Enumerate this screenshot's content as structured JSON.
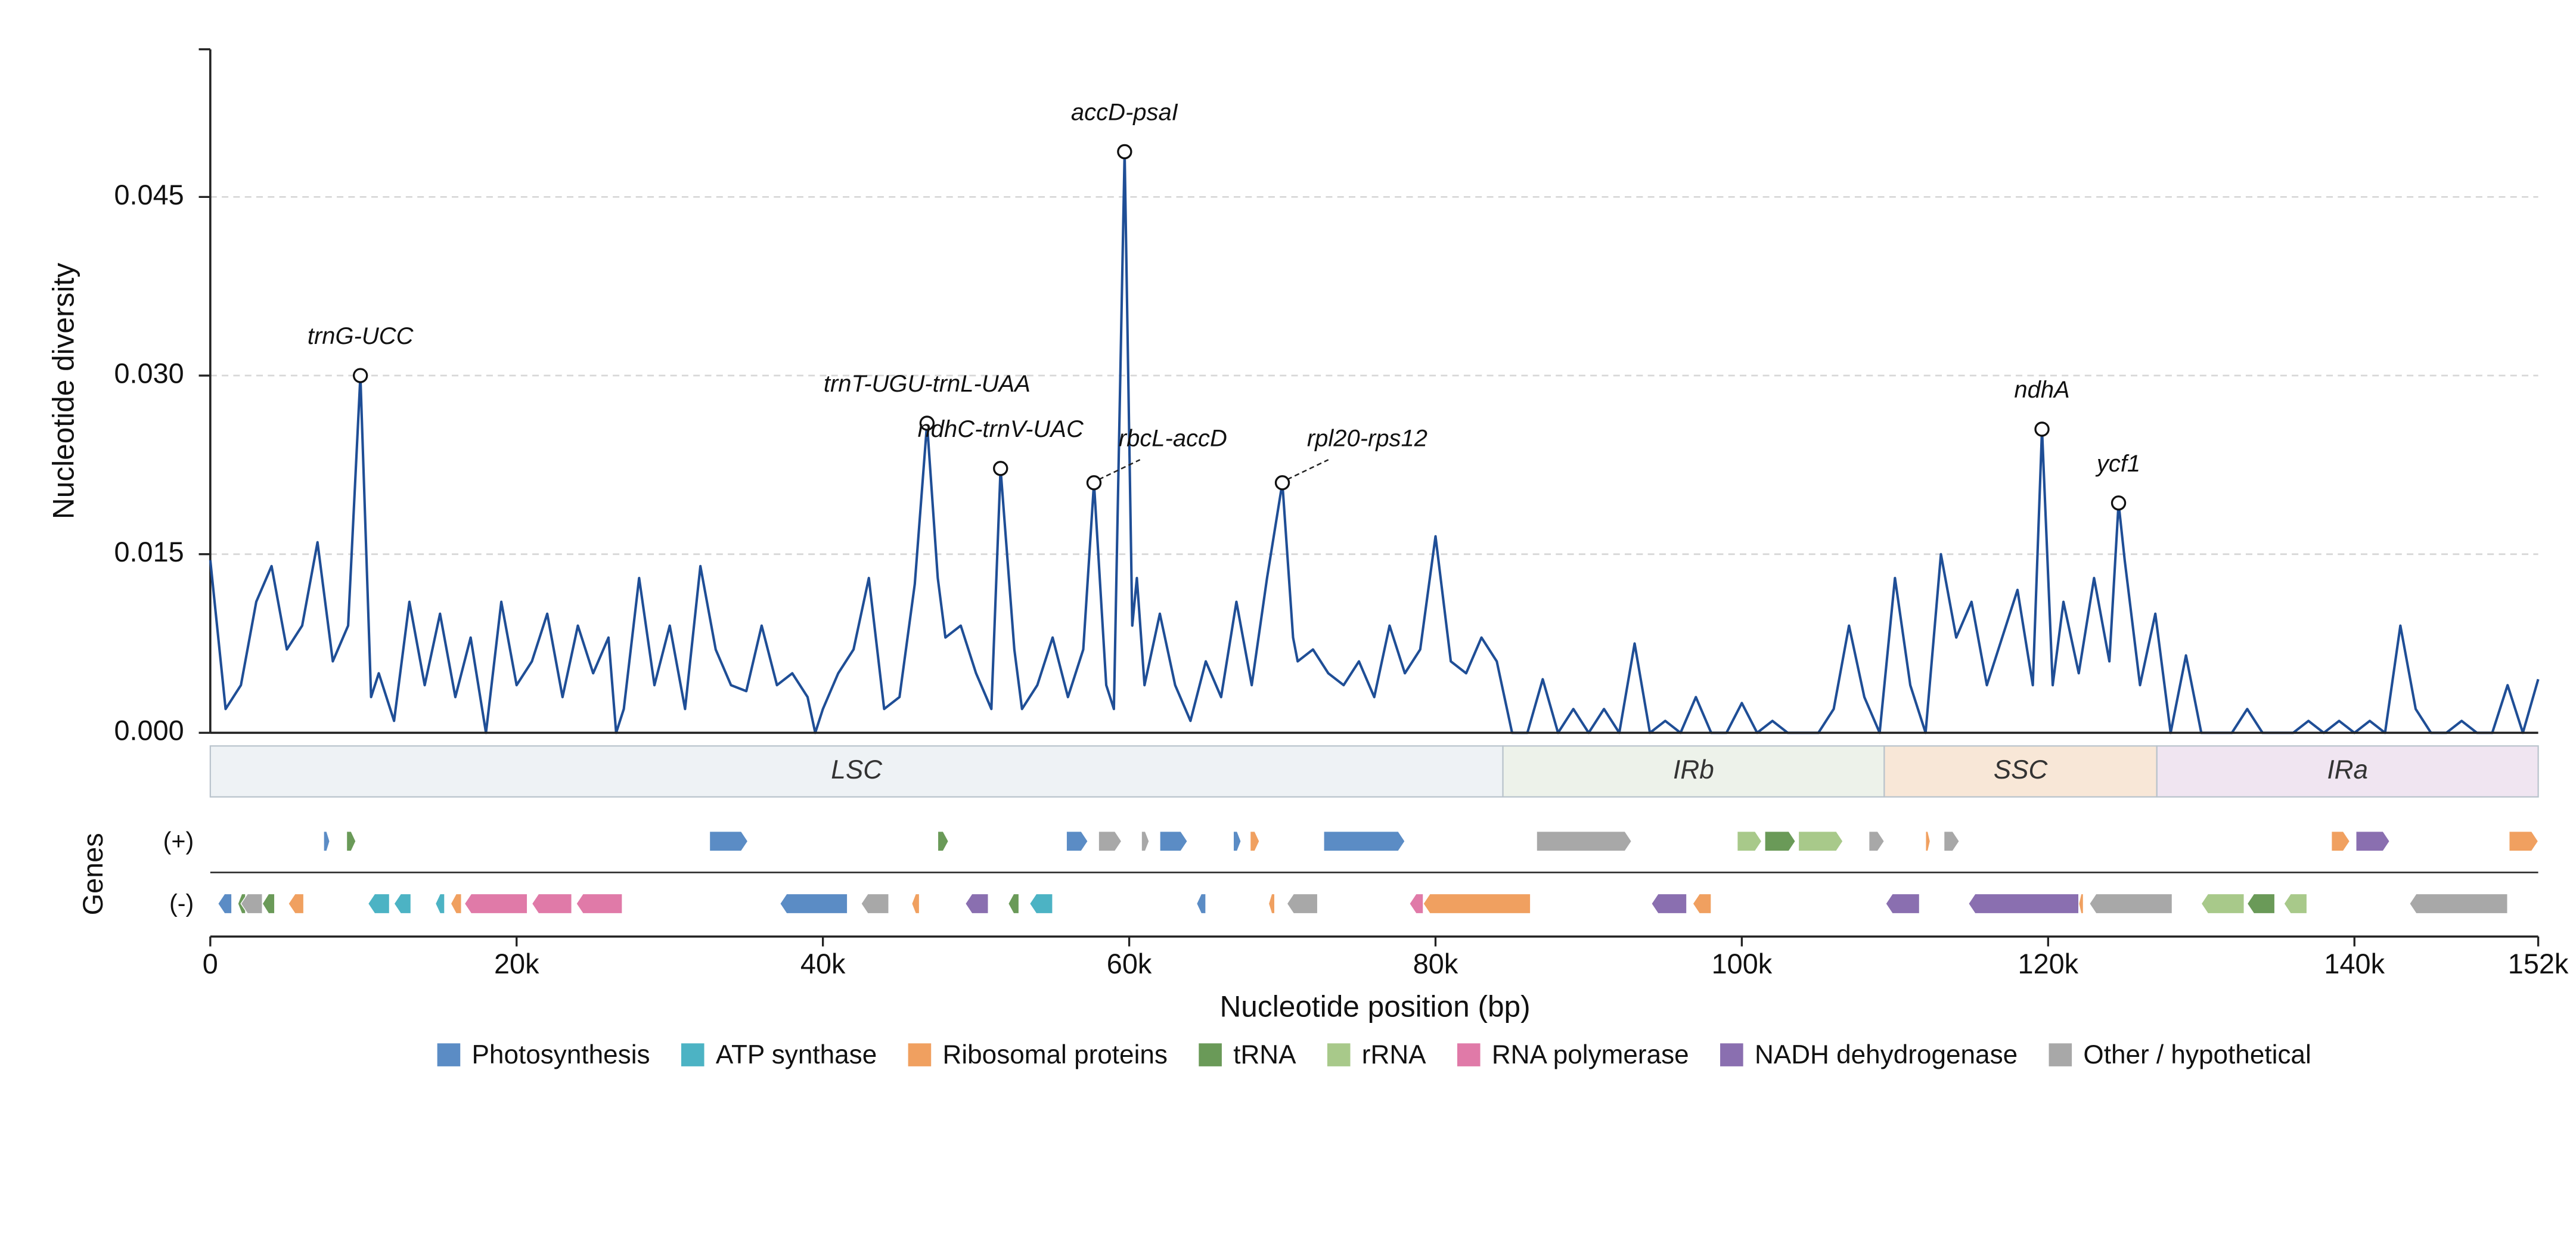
{
  "chart_data": {
    "type": "line",
    "ylabel": "Nucleotide diversity",
    "xlabel": "Nucleotide position (bp)",
    "color": "#1f4e96",
    "xlim": [
      0,
      152000
    ],
    "xticks": [
      {
        "value": 0,
        "label": "0"
      },
      {
        "value": 20000,
        "label": "20k"
      },
      {
        "value": 40000,
        "label": "40k"
      },
      {
        "value": 60000,
        "label": "60k"
      },
      {
        "value": 80000,
        "label": "80k"
      },
      {
        "value": 100000,
        "label": "100k"
      },
      {
        "value": 120000,
        "label": "120k"
      },
      {
        "value": 140000,
        "label": "140k"
      },
      {
        "value": 152000,
        "label": "152k"
      }
    ],
    "ylim": [
      0,
      0.0574
    ],
    "yticks": [
      {
        "value": 0,
        "label": "0.000"
      },
      {
        "value": 0.015,
        "label": "0.015"
      },
      {
        "value": 0.03,
        "label": "0.030"
      },
      {
        "value": 0.045,
        "label": "0.045"
      }
    ],
    "grid": true,
    "x": [
      0,
      1000,
      2000,
      3000,
      4000,
      5000,
      6000,
      7000,
      8000,
      9000,
      9800,
      10500,
      11000,
      12000,
      13000,
      14000,
      15000,
      16000,
      17000,
      18000,
      19000,
      20000,
      21000,
      22000,
      23000,
      24000,
      25000,
      26000,
      26500,
      27000,
      28000,
      29000,
      30000,
      31000,
      32000,
      33000,
      34000,
      35000,
      36000,
      37000,
      38000,
      39000,
      39500,
      40000,
      41000,
      42000,
      43000,
      44000,
      45000,
      46000,
      46800,
      47500,
      48000,
      49000,
      50000,
      51000,
      51600,
      52500,
      53000,
      54000,
      55000,
      56000,
      57000,
      57700,
      58500,
      59000,
      59700,
      60200,
      60500,
      61000,
      62000,
      63000,
      64000,
      65000,
      66000,
      67000,
      68000,
      69000,
      70000,
      70700,
      71000,
      72000,
      73000,
      74000,
      75000,
      76000,
      77000,
      78000,
      79000,
      80000,
      81000,
      82000,
      83000,
      84000,
      85000,
      86000,
      87000,
      88000,
      89000,
      90000,
      91000,
      92000,
      93000,
      94000,
      95000,
      96000,
      97000,
      98000,
      99000,
      100000,
      101000,
      102000,
      103000,
      104000,
      105000,
      106000,
      107000,
      108000,
      109000,
      110000,
      111000,
      112000,
      113000,
      114000,
      115000,
      116000,
      117000,
      118000,
      119000,
      119600,
      120300,
      121000,
      122000,
      123000,
      124000,
      124600,
      125000,
      126000,
      127000,
      128000,
      129000,
      130000,
      131000,
      132000,
      133000,
      134000,
      135000,
      136000,
      137000,
      138000,
      139000,
      140000,
      141000,
      142000,
      143000,
      144000,
      145000,
      146000,
      147000,
      148000,
      149000,
      150000,
      151000,
      152000
    ],
    "values": [
      0.0145,
      0.002,
      0.004,
      0.011,
      0.014,
      0.007,
      0.009,
      0.016,
      0.006,
      0.009,
      0.03,
      0.003,
      0.005,
      0.001,
      0.011,
      0.004,
      0.01,
      0.003,
      0.008,
      0.0,
      0.011,
      0.004,
      0.006,
      0.01,
      0.003,
      0.009,
      0.005,
      0.008,
      0.0,
      0.002,
      0.013,
      0.004,
      0.009,
      0.002,
      0.014,
      0.007,
      0.004,
      0.0035,
      0.009,
      0.004,
      0.005,
      0.003,
      0.0,
      0.002,
      0.005,
      0.007,
      0.013,
      0.002,
      0.003,
      0.0125,
      0.026,
      0.013,
      0.008,
      0.009,
      0.005,
      0.002,
      0.0222,
      0.007,
      0.002,
      0.004,
      0.008,
      0.003,
      0.007,
      0.021,
      0.004,
      0.002,
      0.0488,
      0.009,
      0.013,
      0.004,
      0.01,
      0.004,
      0.001,
      0.006,
      0.003,
      0.011,
      0.004,
      0.013,
      0.021,
      0.008,
      0.006,
      0.007,
      0.005,
      0.004,
      0.006,
      0.003,
      0.009,
      0.005,
      0.007,
      0.0165,
      0.006,
      0.005,
      0.008,
      0.006,
      0.0,
      0.0,
      0.0045,
      0.0,
      0.002,
      0.0,
      0.002,
      0.0,
      0.0075,
      0.0,
      0.001,
      0.0,
      0.003,
      0.0,
      0.0,
      0.0025,
      0.0,
      0.001,
      0.0,
      0.0,
      0.0,
      0.002,
      0.009,
      0.003,
      0.0,
      0.013,
      0.004,
      0.0,
      0.015,
      0.008,
      0.011,
      0.004,
      0.008,
      0.012,
      0.004,
      0.0255,
      0.004,
      0.011,
      0.005,
      0.013,
      0.006,
      0.0193,
      0.0145,
      0.004,
      0.01,
      0.0,
      0.0065,
      0.0,
      0.0,
      0.0,
      0.002,
      0.0,
      0.0,
      0.0,
      0.001,
      0.0,
      0.001,
      0.0,
      0.001,
      0.0,
      0.009,
      0.002,
      0.0,
      0.0,
      0.001,
      0.0,
      0.0,
      0.004,
      0.0,
      0.0045
    ],
    "annotations": [
      {
        "label": "trnG-UCC",
        "x": 9800,
        "y": 0.03
      },
      {
        "label": "trnT-UGU-trnL-UAA",
        "x": 46800,
        "y": 0.026
      },
      {
        "label": "ndhC-trnV-UAC",
        "x": 51600,
        "y": 0.0222
      },
      {
        "label": "rbcL-accD",
        "x": 57700,
        "y": 0.021,
        "leader": true
      },
      {
        "label": "accD-psaI",
        "x": 59700,
        "y": 0.0488
      },
      {
        "label": "rpl20-rps12",
        "x": 70000,
        "y": 0.021,
        "leader": true
      },
      {
        "label": "ndhA",
        "x": 119600,
        "y": 0.0255
      },
      {
        "label": "ycf1",
        "x": 124600,
        "y": 0.0193
      }
    ],
    "regions": [
      {
        "label": "LSC",
        "start": 0,
        "end": 84400,
        "color": "#eef2f5"
      },
      {
        "label": "IRb",
        "start": 84400,
        "end": 109300,
        "color": "#edf2ea"
      },
      {
        "label": "SSC",
        "start": 109300,
        "end": 127100,
        "color": "#f8e7d7"
      },
      {
        "label": "IRa",
        "start": 127100,
        "end": 152000,
        "color": "#f0e5f1"
      }
    ],
    "gene_track": {
      "label": "Genes",
      "strands": [
        "(+)",
        "(-)"
      ],
      "groups": [
        {
          "name": "Photosynthesis",
          "color": "#5b8cc5",
          "plus": [
            [
              7400,
              7800
            ],
            [
              32600,
              35100
            ],
            [
              55900,
              57300
            ],
            [
              62000,
              63800
            ],
            [
              66800,
              67300
            ],
            [
              72700,
              78000
            ]
          ],
          "minus": [
            [
              500,
              1400
            ],
            [
              37200,
              41600
            ],
            [
              64400,
              65000
            ]
          ]
        },
        {
          "name": "ATP synthase",
          "color": "#4cb3c4",
          "plus": [],
          "minus": [
            [
              10300,
              11700
            ],
            [
              12000,
              13100
            ],
            [
              14700,
              15300
            ],
            [
              53500,
              55000
            ]
          ]
        },
        {
          "name": "Ribosomal proteins",
          "color": "#f0a060",
          "plus": [
            [
              67900,
              68500
            ],
            [
              112000,
              112300
            ],
            [
              138500,
              139700
            ],
            [
              150100,
              152000
            ]
          ],
          "minus": [
            [
              5100,
              6100
            ],
            [
              15700,
              16400
            ],
            [
              45800,
              46300
            ],
            [
              69100,
              69500
            ],
            [
              79200,
              86200
            ],
            [
              96800,
              98000
            ],
            [
              122000,
              122300
            ]
          ]
        },
        {
          "name": "tRNA",
          "color": "#6a9a58",
          "plus": [
            [
              8900,
              9500
            ],
            [
              47500,
              48200
            ],
            [
              101500,
              103500
            ]
          ],
          "minus": [
            [
              1800,
              2300
            ],
            [
              3400,
              4200
            ],
            [
              52100,
              52800
            ],
            [
              133000,
              134800
            ]
          ]
        },
        {
          "name": "rRNA",
          "color": "#a8c98a",
          "plus": [
            [
              99700,
              101300
            ],
            [
              103700,
              106600
            ]
          ],
          "minus": [
            [
              130000,
              132800
            ],
            [
              135400,
              136900
            ]
          ]
        },
        {
          "name": "RNA polymerase",
          "color": "#e07aa8",
          "plus": [],
          "minus": [
            [
              16600,
              20700
            ],
            [
              21000,
              23600
            ],
            [
              23900,
              26900
            ],
            [
              78300,
              79200
            ]
          ]
        },
        {
          "name": "NADH dehydrogenase",
          "color": "#8a6fb0",
          "plus": [
            [
              140100,
              142300
            ]
          ],
          "minus": [
            [
              49300,
              50800
            ],
            [
              94100,
              96400
            ],
            [
              109400,
              111600
            ],
            [
              114800,
              122000
            ]
          ]
        },
        {
          "name": "Other / hypothetical",
          "color": "#a8a8a8",
          "plus": [
            [
              58000,
              59500
            ],
            [
              60800,
              61300
            ],
            [
              86600,
              92800
            ],
            [
              108300,
              109300
            ],
            [
              113200,
              114200
            ]
          ],
          "minus": [
            [
              2000,
              3400
            ],
            [
              42500,
              44300
            ],
            [
              70300,
              72300
            ],
            [
              122700,
              128100
            ],
            [
              143600,
              150000
            ]
          ]
        }
      ]
    }
  }
}
